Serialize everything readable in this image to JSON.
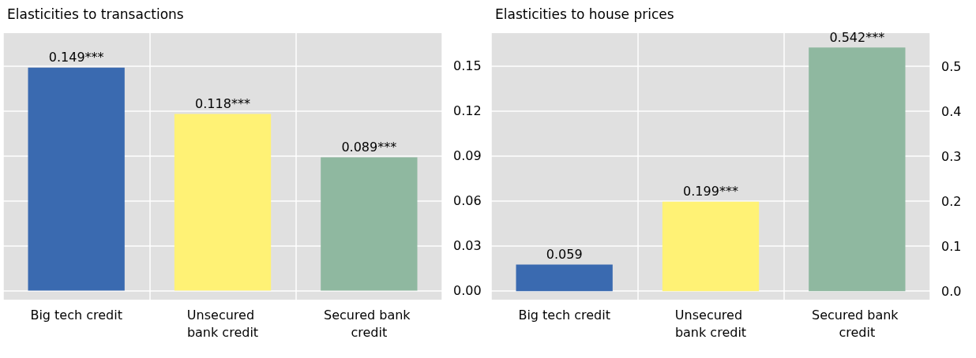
{
  "chart_data": [
    {
      "type": "bar",
      "title": "Elasticities to transactions",
      "categories": [
        "Big tech credit",
        "Unsecured bank credit",
        "Secured bank credit"
      ],
      "values": [
        0.149,
        0.118,
        0.089
      ],
      "colors": [
        "#3a6ab0",
        "#fff275",
        "#8fb8a0"
      ],
      "value_labels": [
        "0.149***",
        "0.118***",
        "0.089***"
      ],
      "ylim": [
        -0.006,
        0.172
      ],
      "yticks": [
        {
          "value": 0,
          "label": "0.00"
        },
        0.03,
        0.06,
        0.09,
        0.12,
        0.15
      ],
      "grid": true
    },
    {
      "type": "bar",
      "title": "Elasticities to house prices",
      "categories": [
        "Big tech credit",
        "Unsecured bank credit",
        "Secured bank credit"
      ],
      "values": [
        0.059,
        0.199,
        0.542
      ],
      "colors": [
        "#3a6ab0",
        "#fff275",
        "#8fb8a0"
      ],
      "value_labels": [
        "0.059",
        "0.199***",
        "0.542***"
      ],
      "ylim": [
        -0.019,
        0.574
      ],
      "yticks": [
        {
          "value": 0,
          "label": "0.0"
        },
        0.1,
        0.2,
        0.3,
        0.4,
        0.5
      ],
      "grid": true
    }
  ]
}
